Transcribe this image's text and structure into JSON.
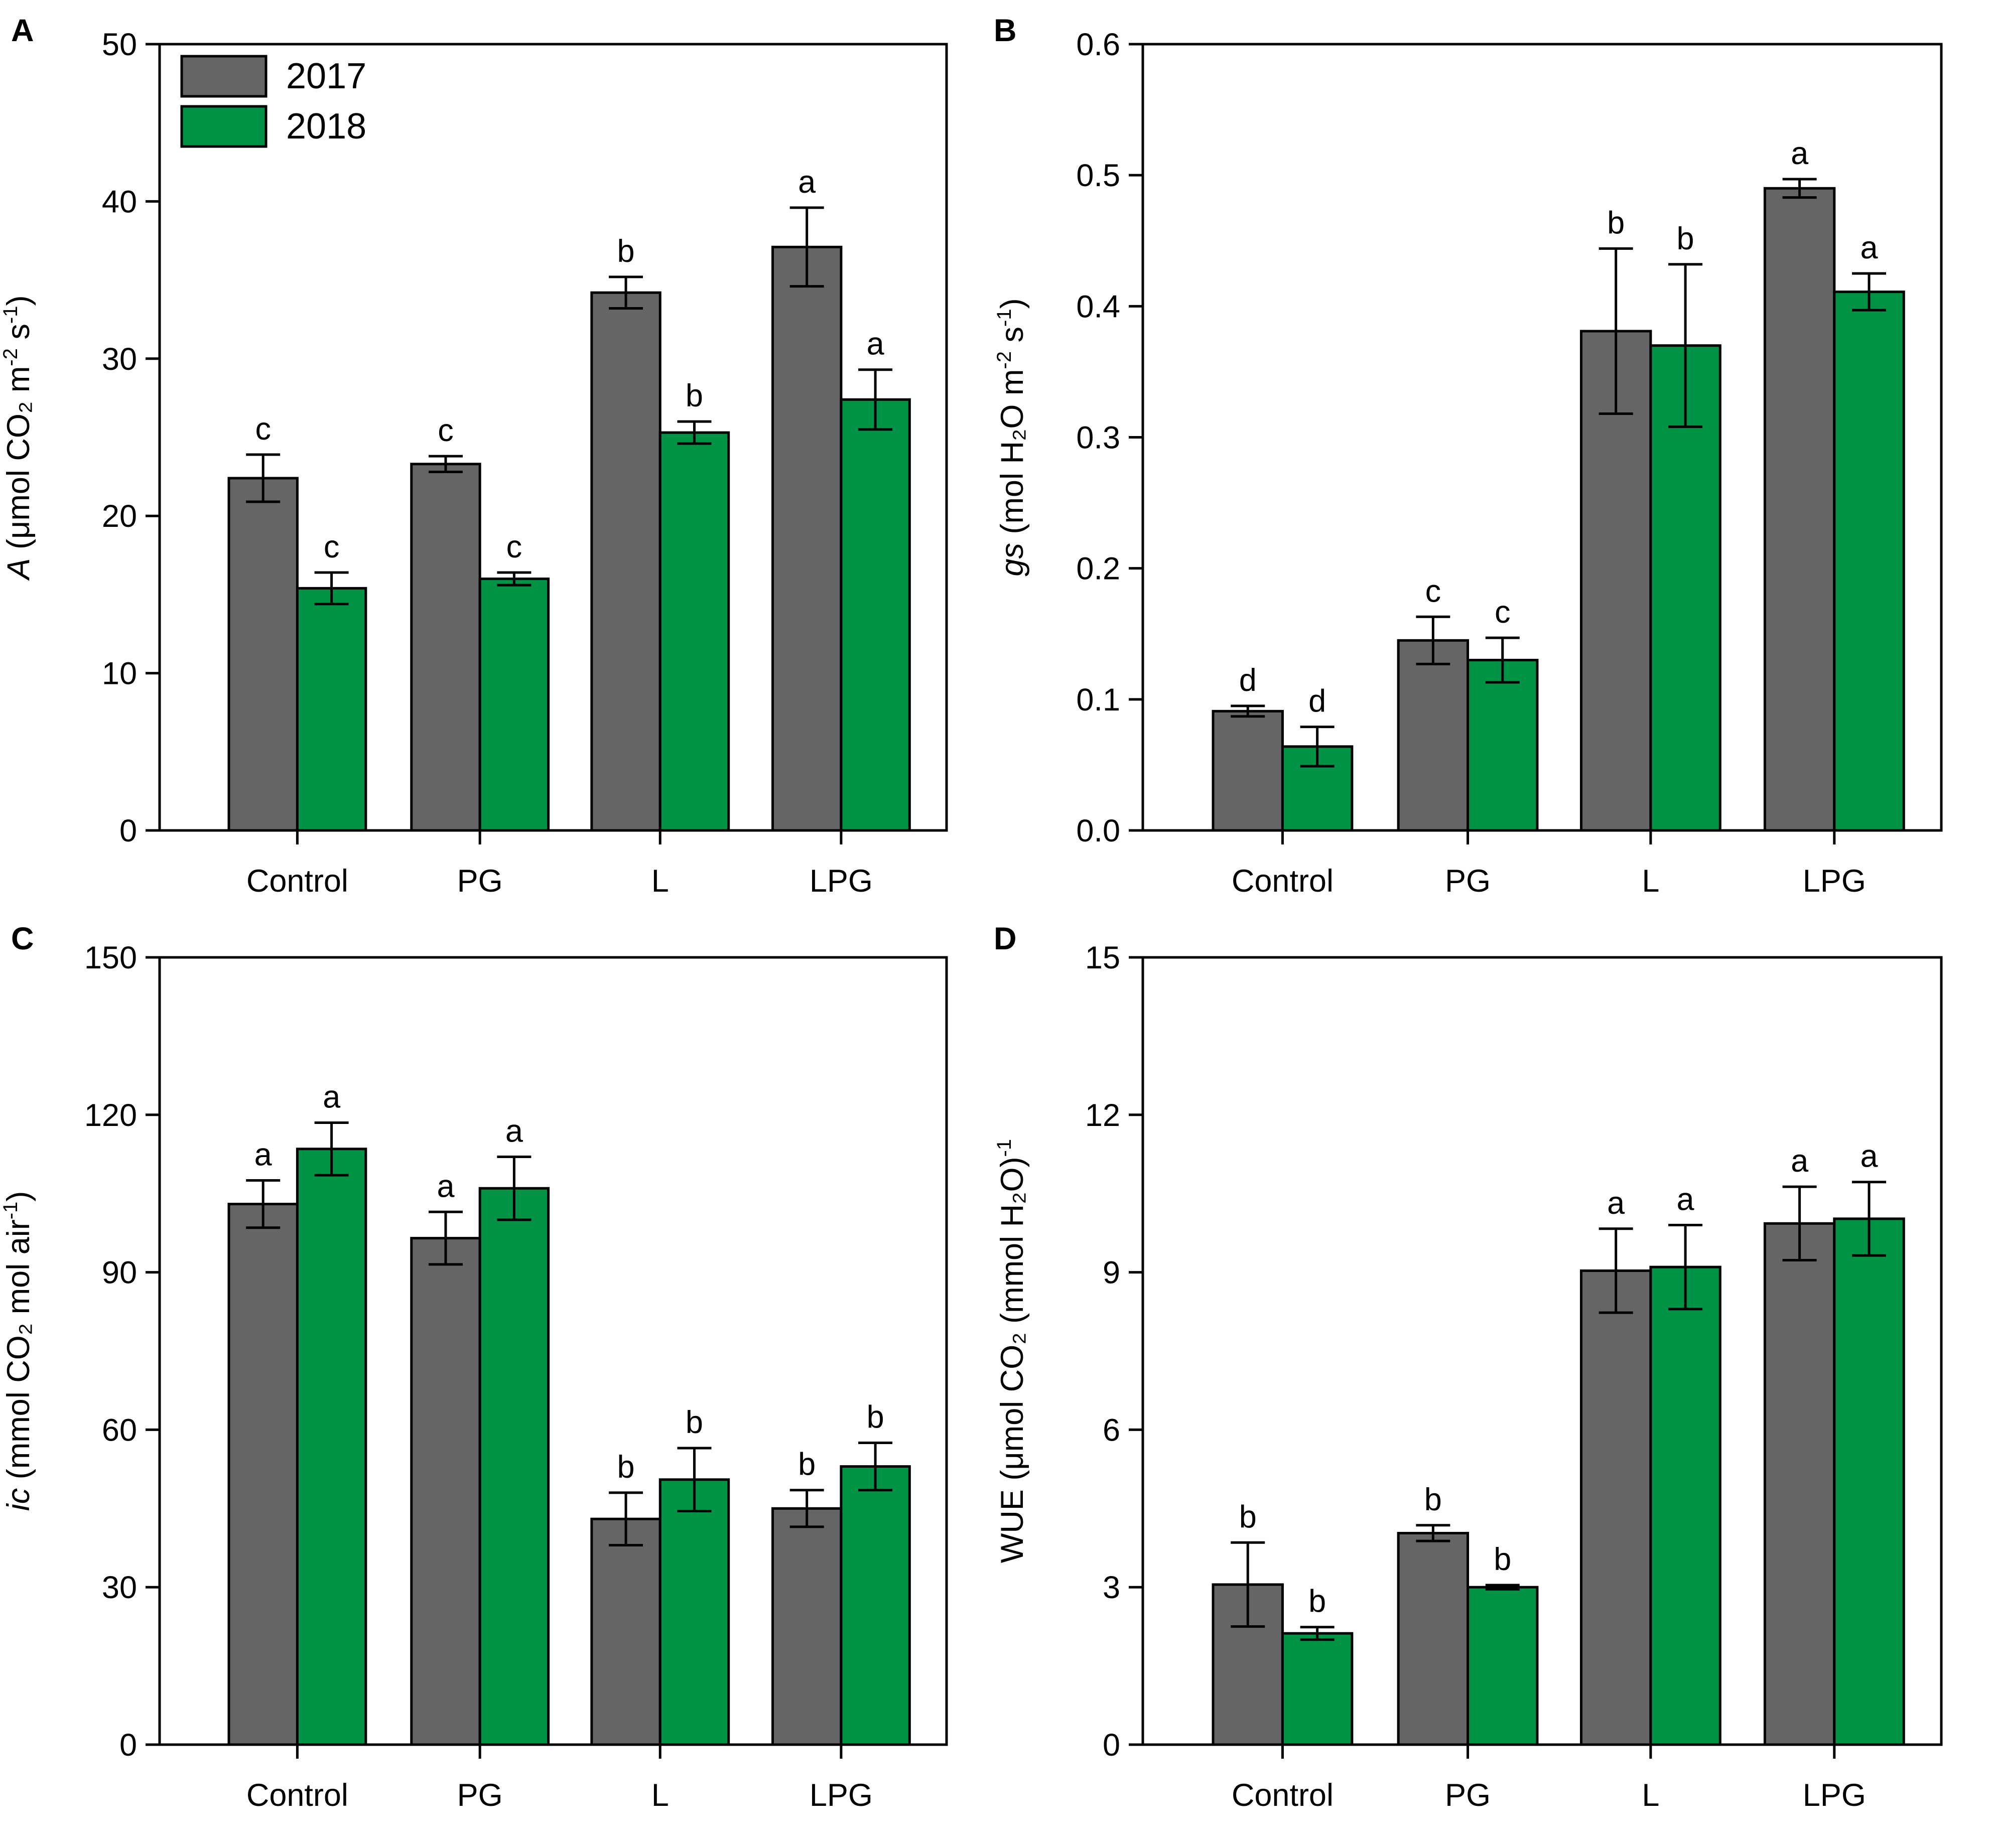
{
  "colors": {
    "y2017": "#656565",
    "y2018": "#009245",
    "axis": "#000000"
  },
  "legend": {
    "items": [
      {
        "label": "2017"
      },
      {
        "label": "2018"
      }
    ]
  },
  "chart_data": [
    {
      "letter": "A",
      "type": "bar",
      "categories": [
        "Control",
        "PG",
        "L",
        "LPG"
      ],
      "ylabel": {
        "italic": "A",
        "text": " (μmol CO₂ m",
        "sup1": "-2",
        "mid": " s",
        "sup2": "-1",
        "end": ")"
      },
      "ylim": [
        0,
        50
      ],
      "yticks": [
        "0",
        "10",
        "20",
        "30",
        "40",
        "50"
      ],
      "series": [
        {
          "name": "2017",
          "values": [
            22.4,
            23.3,
            34.2,
            37.1
          ],
          "errors": [
            1.5,
            0.5,
            1.0,
            2.5
          ],
          "letters": [
            "c",
            "c",
            "b",
            "a"
          ]
        },
        {
          "name": "2018",
          "values": [
            15.4,
            16.0,
            25.3,
            27.4
          ],
          "errors": [
            1.0,
            0.4,
            0.7,
            1.9
          ],
          "letters": [
            "c",
            "c",
            "b",
            "a"
          ]
        }
      ]
    },
    {
      "letter": "B",
      "type": "bar",
      "categories": [
        "Control",
        "PG",
        "L",
        "LPG"
      ],
      "ylabel": {
        "italic": "gs",
        "text": " (mol H₂O m",
        "sup1": "-2",
        "mid": " s",
        "sup2": "-1",
        "end": ")"
      },
      "ylim": [
        0,
        0.6
      ],
      "yticks": [
        "0.0",
        "0.1",
        "0.2",
        "0.3",
        "0.4",
        "0.5",
        "0.6"
      ],
      "series": [
        {
          "name": "2017",
          "values": [
            0.091,
            0.145,
            0.381,
            0.49
          ],
          "errors": [
            0.004,
            0.018,
            0.063,
            0.007
          ],
          "letters": [
            "d",
            "c",
            "b",
            "a"
          ]
        },
        {
          "name": "2018",
          "values": [
            0.064,
            0.13,
            0.37,
            0.411
          ],
          "errors": [
            0.015,
            0.017,
            0.062,
            0.014
          ],
          "letters": [
            "d",
            "c",
            "b",
            "a"
          ]
        }
      ]
    },
    {
      "letter": "C",
      "type": "bar",
      "categories": [
        "Control",
        "PG",
        "L",
        "LPG"
      ],
      "ylabel": {
        "italic": "ic",
        "text": " (mmol CO₂ mol air",
        "sup1": "-1",
        "mid": "",
        "sup2": "",
        "end": ")"
      },
      "ylim": [
        0,
        150
      ],
      "yticks": [
        "0",
        "30",
        "60",
        "90",
        "120",
        "150"
      ],
      "series": [
        {
          "name": "2017",
          "values": [
            103,
            96.5,
            43,
            45
          ],
          "errors": [
            4.5,
            5.0,
            5.0,
            3.5
          ],
          "letters": [
            "a",
            "a",
            "b",
            "b"
          ]
        },
        {
          "name": "2018",
          "values": [
            113.5,
            106,
            50.5,
            53
          ],
          "errors": [
            5.0,
            6.0,
            6.0,
            4.5
          ],
          "letters": [
            "a",
            "a",
            "b",
            "b"
          ]
        }
      ]
    },
    {
      "letter": "D",
      "type": "bar",
      "categories": [
        "Control",
        "PG",
        "L",
        "LPG"
      ],
      "ylabel": {
        "italic": "",
        "text": "WUE (μmol CO₂ (mmol H₂O)",
        "sup1": "-1",
        "mid": "",
        "sup2": "",
        "end": ""
      },
      "ylim": [
        0,
        15
      ],
      "yticks": [
        "0",
        "3",
        "6",
        "9",
        "12",
        "15"
      ],
      "series": [
        {
          "name": "2017",
          "values": [
            3.05,
            4.03,
            9.03,
            9.93
          ],
          "errors": [
            0.8,
            0.15,
            0.8,
            0.7
          ],
          "letters": [
            "b",
            "b",
            "a",
            "a"
          ]
        },
        {
          "name": "2018",
          "values": [
            2.12,
            3.0,
            9.1,
            10.02
          ],
          "errors": [
            0.12,
            0.04,
            0.8,
            0.7
          ],
          "letters": [
            "b",
            "b",
            "a",
            "a"
          ]
        }
      ]
    }
  ]
}
